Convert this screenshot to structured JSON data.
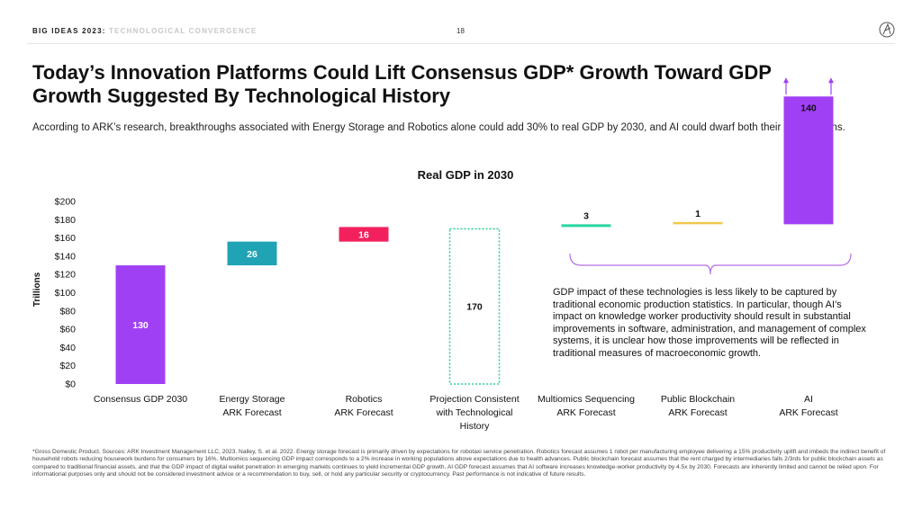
{
  "header": {
    "series_label": "BIG IDEAS 2023:",
    "section_label": "TECHNOLOGICAL CONVERGENCE",
    "page_number": "18"
  },
  "title": "Today’s Innovation Platforms Could Lift Consensus GDP* Growth Toward GDP Growth Suggested By Technological History",
  "subtitle": "According to ARK’s research, breakthroughs associated with Energy Storage and Robotics alone could add 30% to real GDP by 2030, and AI could dwarf both their contributions.",
  "note": "GDP impact of these technologies is less likely to be captured by traditional economic production statistics. In particular, though AI’s impact on knowledge worker productivity should result in substantial improvements in software, administration, and management of complex systems, it is unclear how those improvements will be reflected in traditional measures of macroeconomic growth.",
  "footnote": "*Gross Domestic Product. Sources: ARK Investment Management LLC, 2023. Nalley, S. et al. 2022. Energy storage forecast is primarily driven by expectations for robotaxi service penetration. Robotics forecast assumes 1 robot per manufacturing employee delivering a 15% productivity uplift and imbeds the indirect benefit of household robots reducing housework burdens for consumers by 16%. Multiomics sequencing GDP impact corresponds to a 2% increase in working populations above expectations due to health advances. Public blockchain forecast assumes that the rent charged by intermediaries falls 2/3rds for public blockchain assets as compared to traditional financial assets, and that the GDP impact of digital wallet penetration in emerging markets continues to yield incremental GDP growth. AI GDP forecast assumes that AI software increases knowledge-worker productivity by 4.5x by 2030. Forecasts are inherently limited and cannot be relied upon. For informational purposes only and should not be considered investment advice or a recommendation to buy, sell, or hold any particular security or cryptocurrency. Past performance is not indicative of future results.",
  "chart_data": {
    "type": "bar",
    "subtype": "waterfall",
    "title": "Real GDP in 2030",
    "ylabel": "Trillions",
    "ylim": [
      0,
      200
    ],
    "ytick_labels": [
      "$0",
      "$20",
      "$40",
      "$60",
      "$80",
      "$100",
      "$120",
      "$140",
      "$160",
      "$180",
      "$200"
    ],
    "yticks": [
      0,
      20,
      40,
      60,
      80,
      100,
      120,
      140,
      160,
      180,
      200
    ],
    "grid": false,
    "bars": [
      {
        "category": [
          "Consensus GDP 2030"
        ],
        "start": 0,
        "value": 130,
        "label": "130",
        "color": "#a040f5",
        "style": "solid",
        "label_color": "#ffffff"
      },
      {
        "category": [
          "Energy Storage",
          "ARK Forecast"
        ],
        "start": 130,
        "value": 26,
        "label": "26",
        "color": "#1fa3b5",
        "style": "solid",
        "label_color": "#ffffff"
      },
      {
        "category": [
          "Robotics",
          "ARK Forecast"
        ],
        "start": 156,
        "value": 16,
        "label": "16",
        "color": "#f2215d",
        "style": "solid",
        "label_color": "#ffffff"
      },
      {
        "category": [
          "Projection Consistent",
          "with Technological",
          "History"
        ],
        "start": 0,
        "value": 170,
        "label": "170",
        "color": "#2ed18f",
        "style": "dotted",
        "label_color": "#111111"
      },
      {
        "category": [
          "Multiomics Sequencing",
          "ARK Forecast"
        ],
        "start": 172,
        "value": 3,
        "label": "3",
        "color": "#2bd6a0",
        "style": "solid",
        "label_color": "#111111",
        "label_position": "above"
      },
      {
        "category": [
          "Public Blockchain",
          "ARK Forecast"
        ],
        "start": 175,
        "value": 1,
        "label": "1",
        "color": "#f2c84b",
        "style": "solid",
        "label_color": "#111111",
        "label_position": "above"
      },
      {
        "category": [
          "AI",
          "ARK Forecast"
        ],
        "start": 175,
        "value": 140,
        "label": "140",
        "color": "#a040f5",
        "style": "solid",
        "label_color": "#111111",
        "label_position": "inside-top",
        "upward_arrows": true
      }
    ],
    "brace_color": "#b46ee8"
  }
}
